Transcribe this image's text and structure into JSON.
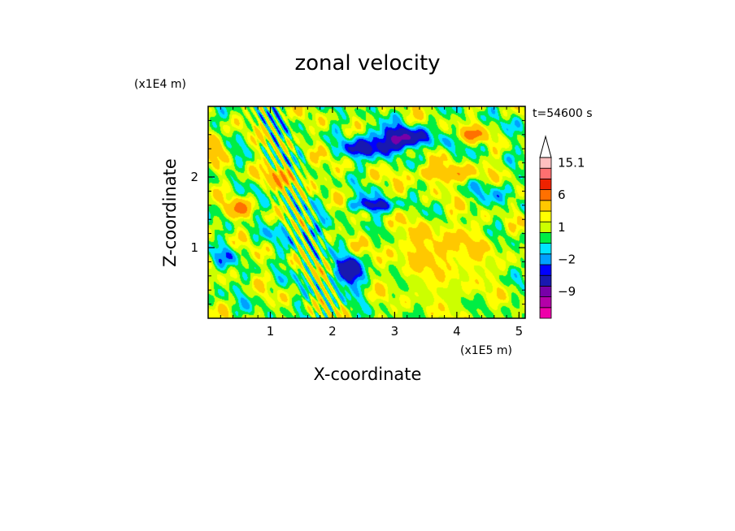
{
  "chart_data": {
    "type": "heatmap",
    "title": "zonal velocity",
    "xlabel": "X-coordinate",
    "ylabel": "Z-coordinate",
    "x_scale_label": "(x1E5 m)",
    "y_scale_label": "(x1E4 m)",
    "time_label": "t=54600 s",
    "xlim": [
      0,
      5.1
    ],
    "ylim": [
      0,
      3.0
    ],
    "x_ticks": [
      1,
      2,
      3,
      4,
      5
    ],
    "y_ticks": [
      1,
      2
    ],
    "x_tick_labels": [
      "1",
      "2",
      "3",
      "4",
      "5"
    ],
    "y_tick_labels": [
      "1",
      "2"
    ],
    "colorbar": {
      "levels": [
        -15,
        -12,
        -9,
        -6,
        -3,
        -2,
        -1,
        0,
        1,
        2,
        3,
        6,
        9,
        12,
        15.1
      ],
      "labels": [
        {
          "value": 15.1,
          "text": "15.1"
        },
        {
          "value": 6,
          "text": "6"
        },
        {
          "value": 1,
          "text": "1"
        },
        {
          "value": -2,
          "text": "−2"
        },
        {
          "value": -9,
          "text": "−9"
        }
      ],
      "colors": [
        "#ee00aa",
        "#b400a8",
        "#7800a8",
        "#1818b0",
        "#0000ff",
        "#00a0ff",
        "#00e5ff",
        "#00ee44",
        "#ccff00",
        "#ffff00",
        "#ffc800",
        "#ff7000",
        "#ee2200",
        "#ff7070",
        "#ffc0c0"
      ]
    },
    "features": [
      {
        "x": 3.1,
        "z": 2.55,
        "value": -7,
        "sx": 0.5,
        "sz": 0.14
      },
      {
        "x": 2.6,
        "z": 2.4,
        "value": -5,
        "sx": 0.35,
        "sz": 0.12
      },
      {
        "x": 2.3,
        "z": 0.65,
        "value": -7,
        "sx": 0.2,
        "sz": 0.2
      },
      {
        "x": 2.65,
        "z": 1.6,
        "value": -5,
        "sx": 0.35,
        "sz": 0.1
      },
      {
        "x": 4.2,
        "z": 2.6,
        "value": 5,
        "sx": 0.25,
        "sz": 0.1
      },
      {
        "x": 0.5,
        "z": 1.55,
        "value": 5,
        "sx": 0.2,
        "sz": 0.12
      },
      {
        "x": 0.1,
        "z": 2.45,
        "value": 5,
        "sx": 0.15,
        "sz": 0.15
      },
      {
        "x": 3.8,
        "z": 2.05,
        "value": 4,
        "sx": 0.6,
        "sz": 0.12
      },
      {
        "x": 1.2,
        "z": 2.0,
        "value": 3,
        "sx": 0.45,
        "sz": 0.15
      },
      {
        "x": 3.7,
        "z": 1.0,
        "value": 2,
        "sx": 0.8,
        "sz": 0.35
      },
      {
        "x": 3.4,
        "z": 0.45,
        "value": 0,
        "sx": 0.9,
        "sz": 0.3
      },
      {
        "x": 1.5,
        "z": 1.2,
        "value": -1.5,
        "sx": 0.5,
        "sz": 0.15
      },
      {
        "x": 4.7,
        "z": 1.8,
        "value": -1.5,
        "sx": 0.4,
        "sz": 0.2
      },
      {
        "x": 1.6,
        "z": 0.3,
        "value": 0,
        "sx": 0.6,
        "sz": 0.2
      },
      {
        "x": 0.3,
        "z": 0.9,
        "value": -1.5,
        "sx": 0.25,
        "sz": 0.15
      }
    ]
  }
}
